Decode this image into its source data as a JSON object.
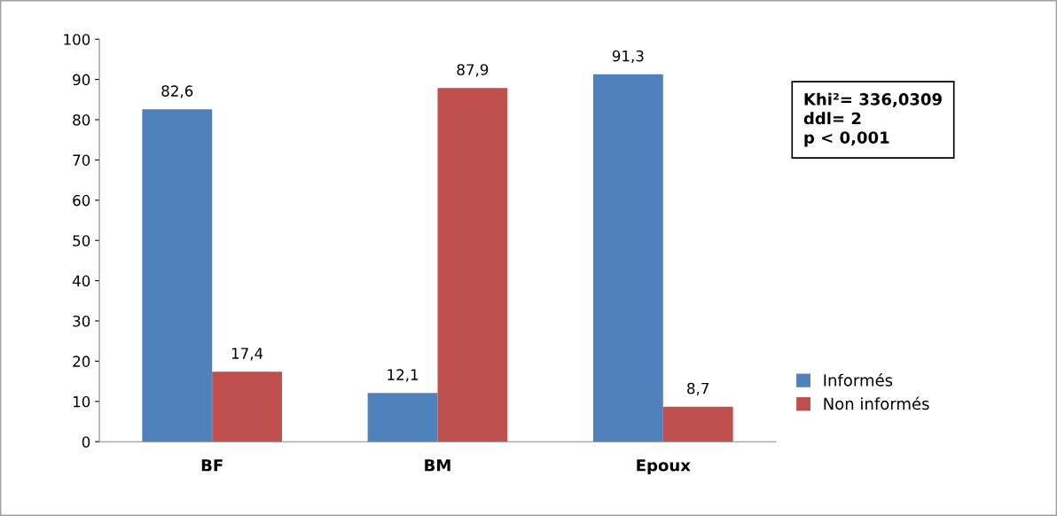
{
  "chart_data": {
    "type": "bar",
    "categories": [
      "BF",
      "BM",
      "Epoux"
    ],
    "series": [
      {
        "name": "Informés",
        "color": "#4f81bd",
        "values": [
          82.6,
          12.1,
          91.3
        ],
        "value_labels": [
          "82,6",
          "12,1",
          "91,3"
        ]
      },
      {
        "name": "Non informés",
        "color": "#c0504d",
        "values": [
          17.4,
          87.9,
          8.7
        ],
        "value_labels": [
          "17,4",
          "87,9",
          "8,7"
        ]
      }
    ],
    "ylim": [
      0,
      100
    ],
    "yticks": [
      0,
      10,
      20,
      30,
      40,
      50,
      60,
      70,
      80,
      90,
      100
    ],
    "annotations": [
      "Khi²= 336,0309",
      "ddl= 2",
      "p < 0,001"
    ],
    "legend": "right",
    "grid": false
  }
}
